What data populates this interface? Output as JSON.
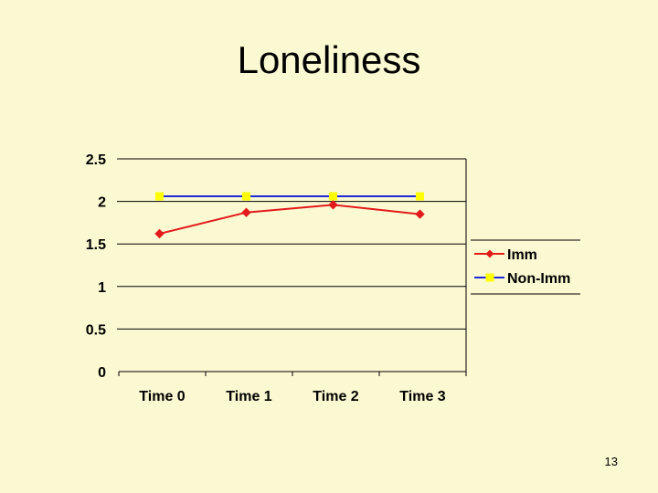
{
  "slide": {
    "title": "Loneliness",
    "page_number": "13"
  },
  "chart_data": {
    "type": "line",
    "categories": [
      "Time 0",
      "Time 1",
      "Time 2",
      "Time 3"
    ],
    "series": [
      {
        "name": "Imm",
        "values": [
          1.62,
          1.87,
          1.96,
          1.85
        ],
        "color": "#e31a1a",
        "marker": "diamond"
      },
      {
        "name": "Non-Imm",
        "values": [
          2.06,
          2.06,
          2.06,
          2.06
        ],
        "color": "#1f2ad6",
        "marker": "square",
        "marker_color": "#ffff00"
      }
    ],
    "ylim": [
      0,
      2.5
    ],
    "yticks": [
      "0",
      "0.5",
      "1",
      "1.5",
      "2",
      "2.5"
    ],
    "ytick_values": [
      0,
      0.5,
      1,
      1.5,
      2,
      2.5
    ],
    "grid": true,
    "legend": "right"
  }
}
